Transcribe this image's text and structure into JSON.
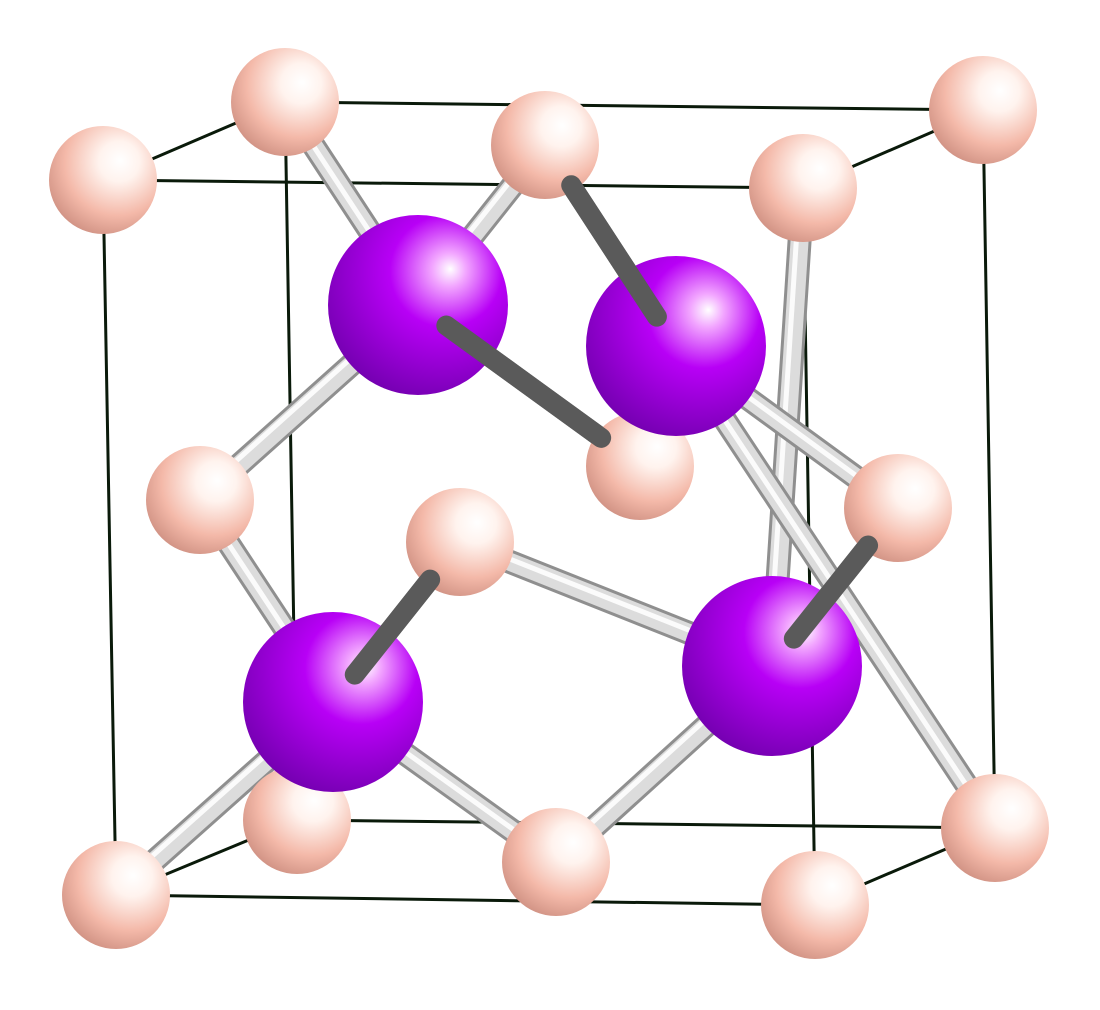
{
  "structure": {
    "cell_edges": [
      [
        "c000",
        "c100"
      ],
      [
        "c000",
        "c001"
      ],
      [
        "c100",
        "c101"
      ],
      [
        "c001",
        "c101"
      ],
      [
        "c010",
        "c110"
      ],
      [
        "c010",
        "c011"
      ],
      [
        "c110",
        "c111"
      ],
      [
        "c011",
        "c111"
      ],
      [
        "c000",
        "c010"
      ],
      [
        "c100",
        "c110"
      ],
      [
        "c001",
        "c011"
      ],
      [
        "c101",
        "c111"
      ]
    ],
    "bonds": [
      {
        "from": "A1",
        "to": "c000",
        "shade": "light"
      },
      {
        "from": "A1",
        "to": "f_bottom",
        "shade": "light"
      },
      {
        "from": "A1",
        "to": "f_left",
        "shade": "light"
      },
      {
        "from": "A1",
        "to": "f_front",
        "shade": "dark"
      },
      {
        "from": "A2",
        "to": "c101",
        "shade": "light"
      },
      {
        "from": "A2",
        "to": "f_bottom",
        "shade": "light"
      },
      {
        "from": "A2",
        "to": "f_front",
        "shade": "light"
      },
      {
        "from": "A2",
        "to": "f_right",
        "shade": "dark"
      },
      {
        "from": "A3",
        "to": "c011",
        "shade": "light"
      },
      {
        "from": "A3",
        "to": "f_top",
        "shade": "light"
      },
      {
        "from": "A3",
        "to": "f_left",
        "shade": "light"
      },
      {
        "from": "A3",
        "to": "f_back",
        "shade": "dark"
      },
      {
        "from": "A4",
        "to": "c110",
        "shade": "light"
      },
      {
        "from": "A4",
        "to": "f_top",
        "shade": "dark"
      },
      {
        "from": "A4",
        "to": "f_back",
        "shade": "light"
      },
      {
        "from": "A4",
        "to": "f_right",
        "shade": "light"
      }
    ],
    "atoms_small": [
      {
        "id": "c011",
        "color": "#f2b8a8"
      },
      {
        "id": "c111",
        "color": "#f2b8a8"
      },
      {
        "id": "f_back",
        "color": "#f2b8a8"
      },
      {
        "id": "c010",
        "color": "#f2b8a8"
      },
      {
        "id": "f_top",
        "color": "#f2b8a8"
      },
      {
        "id": "c110",
        "color": "#f2b8a8"
      },
      {
        "id": "f_left",
        "color": "#f2b8a8"
      },
      {
        "id": "f_bottom",
        "color": "#f2b8a8"
      },
      {
        "id": "f_front",
        "color": "#f2b8a8"
      },
      {
        "id": "f_right",
        "color": "#f2b8a8"
      },
      {
        "id": "c001",
        "color": "#f2b8a8"
      },
      {
        "id": "c101",
        "color": "#f2b8a8"
      },
      {
        "id": "c000",
        "color": "#f2b8a8"
      },
      {
        "id": "c100",
        "color": "#f2b8a8"
      }
    ],
    "atoms_large": [
      {
        "id": "A3",
        "color": "#b000f0"
      },
      {
        "id": "A4",
        "color": "#b000f0"
      },
      {
        "id": "A1",
        "color": "#b000f0"
      },
      {
        "id": "A2",
        "color": "#b000f0"
      }
    ],
    "colors": {
      "small_atom": "#f2b8a8",
      "large_atom": "#b000f0",
      "bond_light": "#dcdcdc",
      "bond_dark": "#5a5a5a",
      "cell_line": "#0a1a0a"
    }
  }
}
